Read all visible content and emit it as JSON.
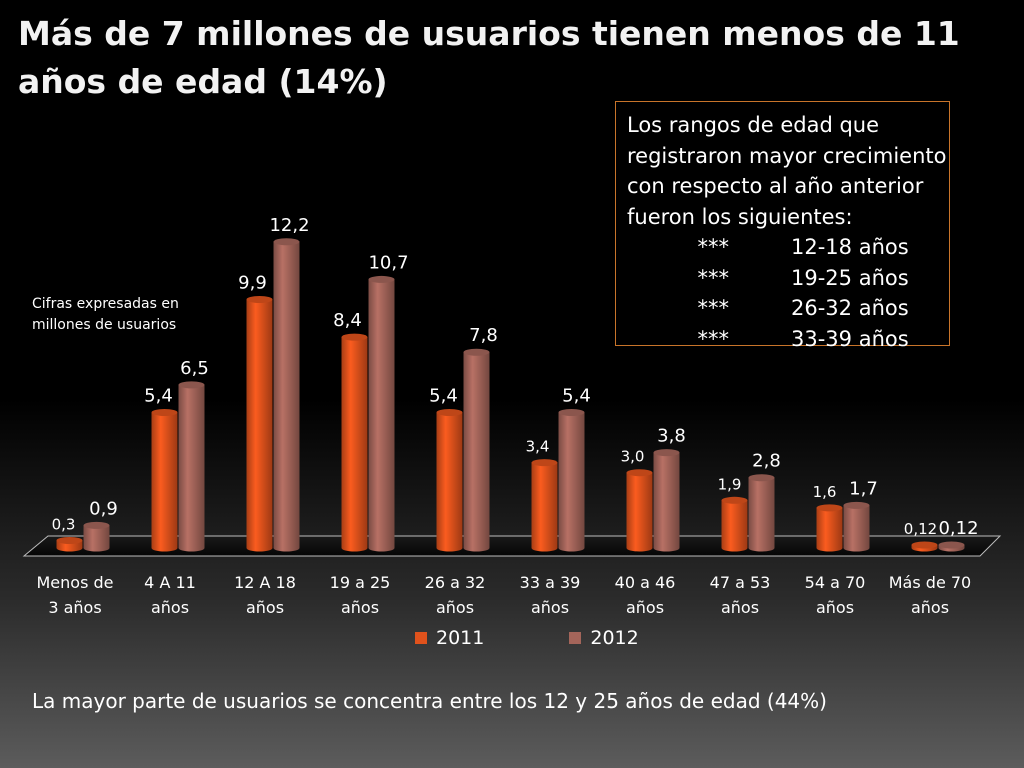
{
  "title": "Más de 7 millones de usuarios tienen menos de 11 años de edad (14%)",
  "units_note": "Cifras expresadas en millones de usuarios",
  "callout": {
    "intro": "Los rangos de edad que registraron mayor crecimiento con respecto al año anterior fueron los siguientes:",
    "items": [
      {
        "bullet": "***",
        "range": "12-18 años"
      },
      {
        "bullet": "***",
        "range": "19-25 años"
      },
      {
        "bullet": "***",
        "range": "26-32 años"
      },
      {
        "bullet": "***",
        "range": "33-39 años"
      }
    ]
  },
  "footer": "La mayor parte de usuarios se concentra entre los 12 y 25 años de edad (44%)",
  "chart_data": {
    "type": "bar",
    "title": "Más de 7 millones de usuarios tienen menos de 11 años de edad (14%)",
    "xlabel": "",
    "ylabel": "",
    "ylim": [
      0,
      12.5
    ],
    "categories": [
      [
        "Menos de",
        "3 años"
      ],
      [
        "4 A 11",
        "años"
      ],
      [
        "12 A 18",
        "años"
      ],
      [
        "19 a 25",
        "años"
      ],
      [
        "26 a 32",
        "años"
      ],
      [
        "33 a 39",
        "años"
      ],
      [
        "40 a 46",
        "años"
      ],
      [
        "47 a 53",
        "años"
      ],
      [
        "54 a 70",
        "años"
      ],
      [
        "Más de 70",
        "años"
      ]
    ],
    "series": [
      {
        "name": "2011",
        "color": "#e0521c",
        "values": [
          0.3,
          5.4,
          9.9,
          8.4,
          5.4,
          3.4,
          3.0,
          1.9,
          1.6,
          0.12
        ],
        "labels": [
          "0,3",
          "5,4",
          "9,9",
          "8,4",
          "5,4",
          "3,4",
          "3,0",
          "1,9",
          "1,6",
          "0,12"
        ]
      },
      {
        "name": "2012",
        "color": "#a4655a",
        "values": [
          0.9,
          6.5,
          12.2,
          10.7,
          7.8,
          5.4,
          3.8,
          2.8,
          1.7,
          0.12
        ],
        "labels": [
          "0,9",
          "6,5",
          "12,2",
          "10,7",
          "7,8",
          "5,4",
          "3,8",
          "2,8",
          "1,7",
          "0,12"
        ]
      }
    ],
    "legend": "bottom"
  }
}
